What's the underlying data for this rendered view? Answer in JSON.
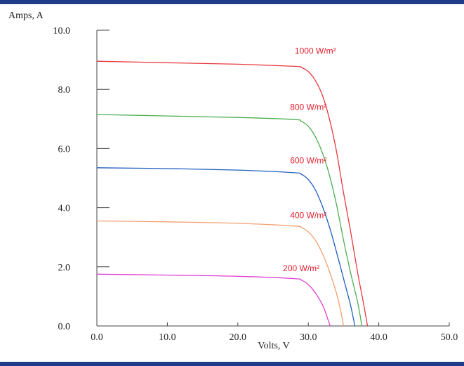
{
  "chart_data": {
    "type": "line",
    "title": "",
    "xlabel": "Volts, V",
    "ylabel": "Amps, A",
    "xlim": [
      0,
      50
    ],
    "ylim": [
      0,
      10
    ],
    "x_ticks": [
      "0.0",
      "10.0",
      "20.0",
      "30.0",
      "40.0",
      "50.0"
    ],
    "y_ticks": [
      "0.0",
      "2.0",
      "4.0",
      "6.0",
      "8.0",
      "10.0"
    ],
    "grid": false,
    "legend": "none",
    "series": [
      {
        "name": "1000 W/m²",
        "color": "#e8383d",
        "points": [
          [
            0,
            8.95
          ],
          [
            10,
            8.9
          ],
          [
            20,
            8.85
          ],
          [
            28,
            8.78
          ],
          [
            29,
            8.74
          ],
          [
            30,
            8.6
          ],
          [
            31,
            8.3
          ],
          [
            32,
            7.8
          ],
          [
            33,
            7.0
          ],
          [
            34,
            5.9
          ],
          [
            35,
            4.5
          ],
          [
            36,
            3.2
          ],
          [
            37,
            1.8
          ],
          [
            37.8,
            0.8
          ],
          [
            38.4,
            0
          ]
        ]
      },
      {
        "name": "800 W/m²",
        "color": "#4caf50",
        "points": [
          [
            0,
            7.15
          ],
          [
            10,
            7.1
          ],
          [
            20,
            7.05
          ],
          [
            28,
            6.98
          ],
          [
            29,
            6.92
          ],
          [
            30,
            6.75
          ],
          [
            31,
            6.4
          ],
          [
            32,
            5.85
          ],
          [
            33,
            5.1
          ],
          [
            34,
            4.1
          ],
          [
            35,
            2.9
          ],
          [
            36,
            1.8
          ],
          [
            37,
            0.8
          ],
          [
            37.6,
            0
          ]
        ]
      },
      {
        "name": "600 W/m²",
        "color": "#1f5fbf",
        "points": [
          [
            0,
            5.35
          ],
          [
            10,
            5.32
          ],
          [
            20,
            5.27
          ],
          [
            28,
            5.18
          ],
          [
            29,
            5.13
          ],
          [
            30,
            4.95
          ],
          [
            31,
            4.6
          ],
          [
            32,
            4.05
          ],
          [
            33,
            3.35
          ],
          [
            34,
            2.5
          ],
          [
            35,
            1.6
          ],
          [
            36,
            0.7
          ],
          [
            36.6,
            0
          ]
        ]
      },
      {
        "name": "400 W/m²",
        "color": "#f0a070",
        "points": [
          [
            0,
            3.55
          ],
          [
            10,
            3.52
          ],
          [
            20,
            3.47
          ],
          [
            28,
            3.38
          ],
          [
            29,
            3.33
          ],
          [
            30,
            3.18
          ],
          [
            31,
            2.9
          ],
          [
            32,
            2.45
          ],
          [
            33,
            1.85
          ],
          [
            34,
            1.1
          ],
          [
            34.6,
            0.5
          ],
          [
            35,
            0
          ]
        ]
      },
      {
        "name": "200 W/m²",
        "color": "#e040d0",
        "points": [
          [
            0,
            1.75
          ],
          [
            10,
            1.72
          ],
          [
            20,
            1.68
          ],
          [
            28,
            1.6
          ],
          [
            29,
            1.55
          ],
          [
            30,
            1.4
          ],
          [
            31,
            1.12
          ],
          [
            32,
            0.72
          ],
          [
            32.6,
            0.35
          ],
          [
            33.1,
            0
          ]
        ]
      }
    ],
    "annotations": [
      {
        "text": "1000 W/m²",
        "x": 31,
        "y": 9.2
      },
      {
        "text": "800 W/m²",
        "x": 30,
        "y": 7.3
      },
      {
        "text": "600 W/m²",
        "x": 30,
        "y": 5.5
      },
      {
        "text": "400 W/m²",
        "x": 30,
        "y": 3.65
      },
      {
        "text": "200 W/m²",
        "x": 29,
        "y": 1.85
      }
    ],
    "annotation_color": "#e21b2a"
  }
}
